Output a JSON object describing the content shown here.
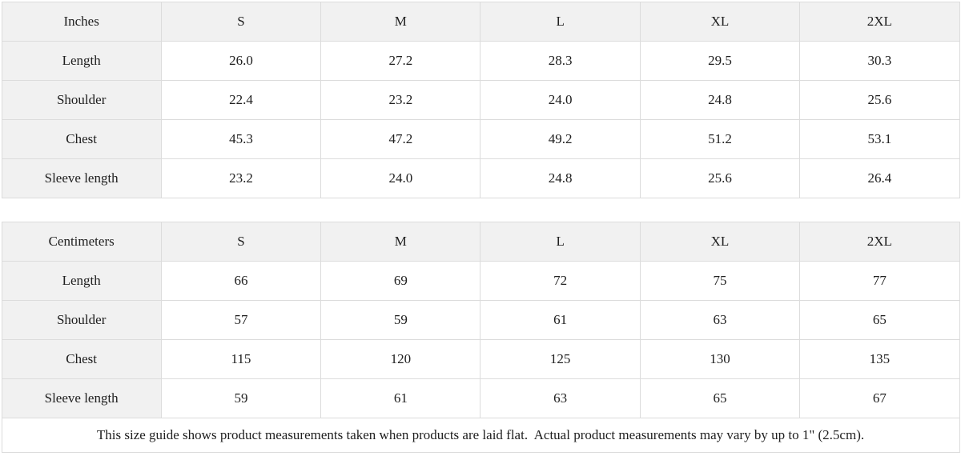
{
  "colors": {
    "header_bg": "#f1f1f1",
    "border": "#dcdcdc",
    "text": "#202020",
    "page_bg": "#ffffff"
  },
  "size_tables": [
    {
      "unit_label": "Inches",
      "columns": [
        "S",
        "M",
        "L",
        "XL",
        "2XL"
      ],
      "rows": [
        {
          "label": "Length",
          "values": [
            "26.0",
            "27.2",
            "28.3",
            "29.5",
            "30.3"
          ]
        },
        {
          "label": "Shoulder",
          "values": [
            "22.4",
            "23.2",
            "24.0",
            "24.8",
            "25.6"
          ]
        },
        {
          "label": "Chest",
          "values": [
            "45.3",
            "47.2",
            "49.2",
            "51.2",
            "53.1"
          ]
        },
        {
          "label": "Sleeve length",
          "values": [
            "23.2",
            "24.0",
            "24.8",
            "25.6",
            "26.4"
          ]
        }
      ]
    },
    {
      "unit_label": "Centimeters",
      "columns": [
        "S",
        "M",
        "L",
        "XL",
        "2XL"
      ],
      "rows": [
        {
          "label": "Length",
          "values": [
            "66",
            "69",
            "72",
            "75",
            "77"
          ]
        },
        {
          "label": "Shoulder",
          "values": [
            "57",
            "59",
            "61",
            "63",
            "65"
          ]
        },
        {
          "label": "Chest",
          "values": [
            "115",
            "120",
            "125",
            "130",
            "135"
          ]
        },
        {
          "label": "Sleeve length",
          "values": [
            "59",
            "61",
            "63",
            "65",
            "67"
          ]
        }
      ]
    }
  ],
  "footer": {
    "note": "This size guide shows product measurements taken when products are laid flat.  Actual product measurements may vary by up to 1\" (2.5cm)."
  }
}
